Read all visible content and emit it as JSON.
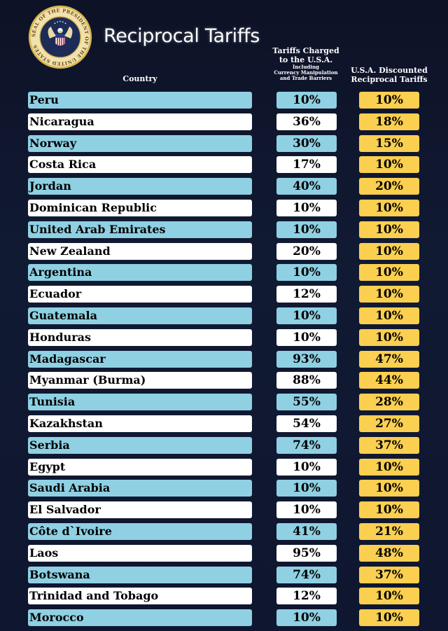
{
  "seal": {
    "text": "SEAL OF THE PRESIDENT OF THE UNITED STATES"
  },
  "header": {
    "title": "Reciprocal Tariffs",
    "country_label": "Country",
    "charged_label_line1": "Tariffs Charged",
    "charged_label_line2": "to the U.S.A.",
    "charged_sub_line1": "Including",
    "charged_sub_line2": "Currency Manipulation",
    "charged_sub_line3": "and Trade Barriers",
    "discount_label_line1": "U.S.A. Discounted",
    "discount_label_line2": "Reciprocal Tariffs"
  },
  "colors": {
    "background": "#0f1428",
    "row_blue": "#8fd0e3",
    "row_white": "#ffffff",
    "discount_yellow": "#fbcf4f"
  },
  "rows": [
    {
      "country": "Peru",
      "charged": "10%",
      "discounted": "10%"
    },
    {
      "country": "Nicaragua",
      "charged": "36%",
      "discounted": "18%"
    },
    {
      "country": "Norway",
      "charged": "30%",
      "discounted": "15%"
    },
    {
      "country": "Costa Rica",
      "charged": "17%",
      "discounted": "10%"
    },
    {
      "country": "Jordan",
      "charged": "40%",
      "discounted": "20%"
    },
    {
      "country": "Dominican Republic",
      "charged": "10%",
      "discounted": "10%"
    },
    {
      "country": "United Arab Emirates",
      "charged": "10%",
      "discounted": "10%"
    },
    {
      "country": "New Zealand",
      "charged": "20%",
      "discounted": "10%"
    },
    {
      "country": "Argentina",
      "charged": "10%",
      "discounted": "10%"
    },
    {
      "country": "Ecuador",
      "charged": "12%",
      "discounted": "10%"
    },
    {
      "country": "Guatemala",
      "charged": "10%",
      "discounted": "10%"
    },
    {
      "country": "Honduras",
      "charged": "10%",
      "discounted": "10%"
    },
    {
      "country": "Madagascar",
      "charged": "93%",
      "discounted": "47%"
    },
    {
      "country": "Myanmar (Burma)",
      "charged": "88%",
      "discounted": "44%"
    },
    {
      "country": "Tunisia",
      "charged": "55%",
      "discounted": "28%"
    },
    {
      "country": "Kazakhstan",
      "charged": "54%",
      "discounted": "27%"
    },
    {
      "country": "Serbia",
      "charged": "74%",
      "discounted": "37%"
    },
    {
      "country": "Egypt",
      "charged": "10%",
      "discounted": "10%"
    },
    {
      "country": "Saudi Arabia",
      "charged": "10%",
      "discounted": "10%"
    },
    {
      "country": "El Salvador",
      "charged": "10%",
      "discounted": "10%"
    },
    {
      "country": "Côte d`Ivoire",
      "charged": "41%",
      "discounted": "21%"
    },
    {
      "country": "Laos",
      "charged": "95%",
      "discounted": "48%"
    },
    {
      "country": "Botswana",
      "charged": "74%",
      "discounted": "37%"
    },
    {
      "country": "Trinidad and Tobago",
      "charged": "12%",
      "discounted": "10%"
    },
    {
      "country": "Morocco",
      "charged": "10%",
      "discounted": "10%"
    }
  ]
}
